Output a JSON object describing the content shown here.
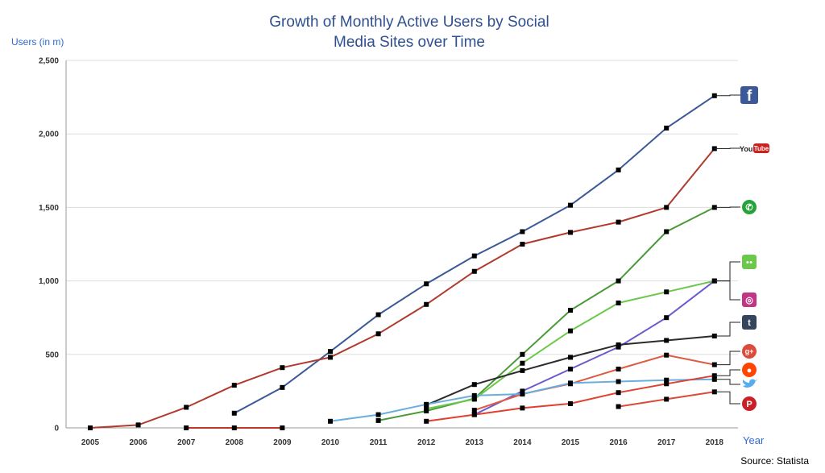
{
  "chart_data": {
    "type": "line",
    "title_line1": "Growth of Monthly Active Users by Social",
    "title_line2": "Media Sites over Time",
    "ylabel": "Users (in m)",
    "xlabel": "Year",
    "source": "Source: Statista",
    "x": [
      2005,
      2006,
      2007,
      2008,
      2009,
      2010,
      2011,
      2012,
      2013,
      2014,
      2015,
      2016,
      2017,
      2018
    ],
    "y_ticks": [
      "0",
      "500",
      "1,000",
      "1,500",
      "2,000",
      "2,500"
    ],
    "ylim": [
      0,
      2500
    ],
    "grid": true,
    "series": [
      {
        "icon": "facebook",
        "color": "#3b5998",
        "x": [
          2008,
          2009,
          2010,
          2011,
          2012,
          2013,
          2014,
          2015,
          2016,
          2017,
          2018
        ],
        "values": [
          100,
          275,
          520,
          770,
          980,
          1170,
          1335,
          1515,
          1755,
          2040,
          2260
        ]
      },
      {
        "icon": "youtube",
        "color": "#b03a2e",
        "x": [
          2005,
          2006,
          2007,
          2008,
          2009,
          2010,
          2011,
          2012,
          2013,
          2014,
          2015,
          2016,
          2017,
          2018
        ],
        "values": [
          0,
          20,
          140,
          290,
          410,
          480,
          640,
          840,
          1065,
          1250,
          1330,
          1400,
          1500,
          1900
        ]
      },
      {
        "icon": "whatsapp",
        "color": "#4a9a3a",
        "x": [
          2011,
          2012,
          2013,
          2014,
          2015,
          2016,
          2017,
          2018
        ],
        "values": [
          50,
          115,
          200,
          500,
          800,
          1000,
          1335,
          1500
        ]
      },
      {
        "icon": "wechat",
        "color": "#6cc84a",
        "x": [
          2012,
          2013,
          2014,
          2015,
          2016,
          2017,
          2018
        ],
        "values": [
          130,
          195,
          440,
          660,
          850,
          925,
          1000
        ]
      },
      {
        "icon": "instagram",
        "color": "#6a5acd",
        "x": [
          2013,
          2014,
          2015,
          2016,
          2017,
          2018
        ],
        "values": [
          90,
          250,
          400,
          550,
          750,
          1000
        ]
      },
      {
        "icon": "tumblr",
        "color": "#2b2b2b",
        "x": [
          2012,
          2013,
          2014,
          2015,
          2016,
          2017,
          2018
        ],
        "values": [
          155,
          295,
          390,
          480,
          565,
          595,
          625
        ]
      },
      {
        "icon": "google-plus",
        "color": "#dd5b43",
        "x": [
          2013,
          2014,
          2015,
          2016,
          2017,
          2018
        ],
        "values": [
          120,
          230,
          300,
          400,
          495,
          430
        ]
      },
      {
        "icon": "twitter",
        "color": "#6aaee0",
        "x": [
          2010,
          2011,
          2012,
          2013,
          2014,
          2015,
          2016,
          2017,
          2018
        ],
        "values": [
          45,
          90,
          160,
          220,
          230,
          305,
          315,
          325,
          330
        ]
      },
      {
        "icon": "reddit",
        "color": "#e04030",
        "x": [
          2012,
          2013,
          2014,
          2015,
          2016,
          2017,
          2018
        ],
        "values": [
          45,
          90,
          135,
          165,
          240,
          300,
          355
        ]
      },
      {
        "icon": "pinterest",
        "color": "#d94b3a",
        "x": [
          2016,
          2017,
          2018
        ],
        "values": [
          145,
          195,
          245
        ]
      },
      {
        "icon": "myspace",
        "color": "#c0392b",
        "x": [
          2007,
          2008,
          2009
        ],
        "values": [
          0,
          0,
          0
        ]
      }
    ],
    "icons": [
      {
        "name": "facebook-icon",
        "glyph": "f",
        "bg": "#3b5998"
      },
      {
        "name": "youtube-icon",
        "glyph": "YouTube",
        "bg": "#cd201f"
      },
      {
        "name": "whatsapp-icon",
        "glyph": "✆",
        "bg": "#25a33a"
      },
      {
        "name": "wechat-icon",
        "glyph": "●●",
        "bg": "#6cc84a"
      },
      {
        "name": "instagram-icon",
        "glyph": "◎",
        "bg": "#c13584"
      },
      {
        "name": "tumblr-icon",
        "glyph": "t",
        "bg": "#35465c"
      },
      {
        "name": "google-plus-icon",
        "glyph": "g+",
        "bg": "#dd4b39"
      },
      {
        "name": "reddit-icon",
        "glyph": "●",
        "bg": "#ff4500"
      },
      {
        "name": "twitter-icon",
        "glyph": "✦",
        "bg": "#ffffff"
      },
      {
        "name": "pinterest-icon",
        "glyph": "P",
        "bg": "#cb2027"
      }
    ]
  }
}
